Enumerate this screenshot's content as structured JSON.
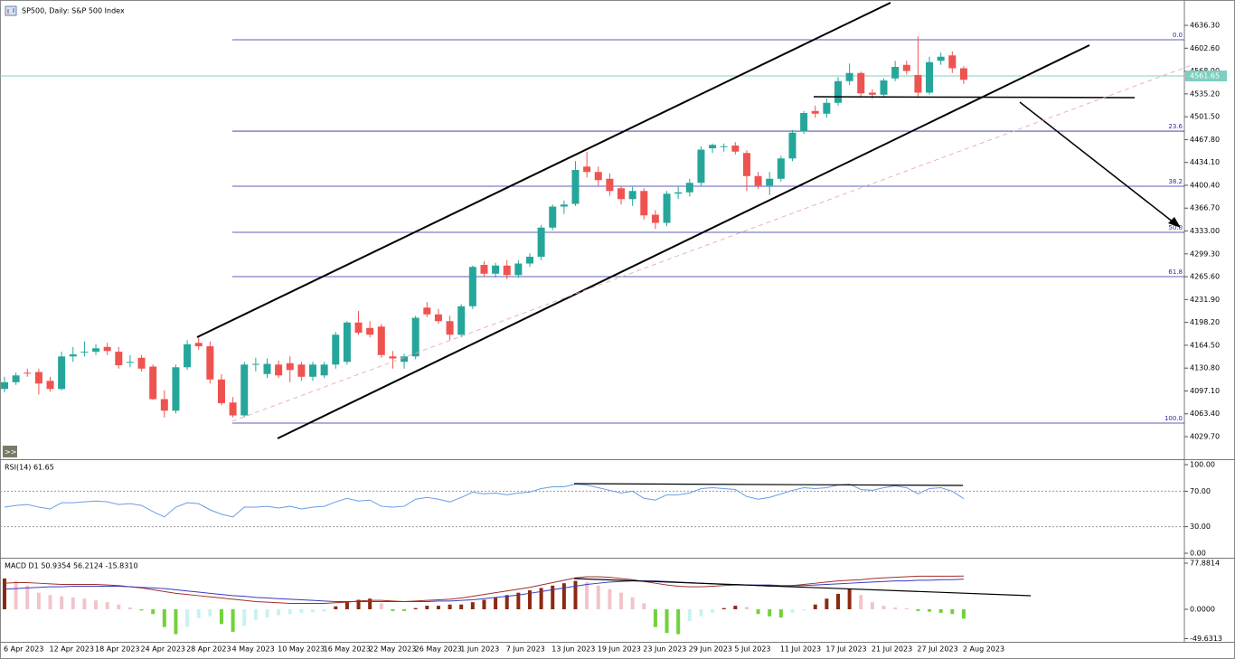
{
  "toolbar": {
    "expand": ">>"
  },
  "chart_data": [
    {
      "type": "candlestick",
      "title": "SP500, Daily:  S&P 500 Index",
      "categories": [
        "6 Apr 2023",
        null,
        null,
        null,
        "12 Apr 2023",
        null,
        null,
        null,
        "18 Apr 2023",
        null,
        null,
        null,
        "24 Apr 2023",
        null,
        null,
        null,
        "28 Apr 2023",
        null,
        null,
        null,
        "4 May 2023",
        null,
        null,
        null,
        "10 May 2023",
        null,
        null,
        null,
        "16 May 2023",
        null,
        null,
        null,
        "22 May 2023",
        null,
        null,
        null,
        "26 May 2023",
        null,
        null,
        null,
        "1 Jun 2023",
        null,
        null,
        null,
        "7 Jun 2023",
        null,
        null,
        null,
        "13 Jun 2023",
        null,
        null,
        null,
        "19 Jun 2023",
        null,
        null,
        null,
        "23 Jun 2023",
        null,
        null,
        null,
        "29 Jun 2023",
        null,
        null,
        null,
        "5 Jul 2023",
        null,
        null,
        null,
        "11 Jul 2023",
        null,
        null,
        null,
        "17 Jul 2023",
        null,
        null,
        null,
        "21 Jul 2023",
        null,
        null,
        null,
        "27 Jul 2023",
        null,
        null,
        null,
        "2 Aug 2023"
      ],
      "open": [
        4100,
        4110,
        4124,
        4125,
        4112,
        4100,
        4148,
        4154,
        4155,
        4162,
        4155,
        4140,
        4146,
        4133,
        4085,
        4068,
        4132,
        4168,
        4163,
        4114,
        4080,
        4061,
        4136,
        4122,
        4136,
        4138,
        4136,
        4118,
        4120,
        4136,
        4140,
        4198,
        4190,
        4192,
        4148,
        4140,
        4148,
        4220,
        4210,
        4200,
        4180,
        4222,
        4283,
        4270,
        4282,
        4268,
        4285,
        4295,
        4338,
        4369,
        4373,
        4428,
        4420,
        4410,
        4396,
        4380,
        4392,
        4357,
        4345,
        4388,
        4390,
        4404,
        4455,
        4458,
        4459,
        4448,
        4414,
        4400,
        4410,
        4440,
        4480,
        4510,
        4506,
        4522,
        4554,
        4566,
        4537,
        4534,
        4558,
        4578,
        4563,
        4537,
        4584,
        4592,
        4573
      ],
      "high": [
        4118,
        4124,
        4130,
        4130,
        4118,
        4155,
        4162,
        4170,
        4166,
        4168,
        4162,
        4150,
        4150,
        4136,
        4098,
        4136,
        4172,
        4176,
        4170,
        4122,
        4088,
        4140,
        4146,
        4145,
        4142,
        4148,
        4140,
        4140,
        4140,
        4184,
        4200,
        4215,
        4200,
        4196,
        4156,
        4152,
        4208,
        4228,
        4218,
        4208,
        4225,
        4282,
        4288,
        4286,
        4290,
        4290,
        4300,
        4342,
        4372,
        4378,
        4436,
        4450,
        4428,
        4418,
        4400,
        4398,
        4396,
        4364,
        4392,
        4398,
        4410,
        4458,
        4462,
        4462,
        4464,
        4452,
        4420,
        4420,
        4444,
        4482,
        4510,
        4518,
        4528,
        4560,
        4580,
        4568,
        4542,
        4558,
        4584,
        4584,
        4620,
        4590,
        4596,
        4598,
        4576
      ],
      "low": [
        4095,
        4106,
        4118,
        4092,
        4096,
        4098,
        4140,
        4148,
        4150,
        4150,
        4130,
        4132,
        4126,
        4084,
        4058,
        4064,
        4128,
        4158,
        4108,
        4076,
        4058,
        4058,
        4126,
        4116,
        4116,
        4110,
        4112,
        4112,
        4116,
        4130,
        4136,
        4180,
        4176,
        4146,
        4130,
        4130,
        4144,
        4206,
        4196,
        4172,
        4176,
        4218,
        4265,
        4264,
        4262,
        4264,
        4280,
        4290,
        4334,
        4358,
        4370,
        4412,
        4400,
        4385,
        4372,
        4370,
        4350,
        4336,
        4340,
        4380,
        4384,
        4400,
        4448,
        4450,
        4446,
        4392,
        4395,
        4386,
        4406,
        4436,
        4476,
        4500,
        4500,
        4518,
        4548,
        4530,
        4528,
        4530,
        4554,
        4564,
        4530,
        4534,
        4578,
        4566,
        4550
      ],
      "close": [
        4110,
        4120,
        4123,
        4108,
        4100,
        4148,
        4151,
        4155,
        4160,
        4156,
        4135,
        4140,
        4130,
        4085,
        4068,
        4132,
        4166,
        4163,
        4114,
        4079,
        4061,
        4136,
        4137,
        4137,
        4120,
        4128,
        4118,
        4136,
        4136,
        4180,
        4198,
        4183,
        4180,
        4150,
        4145,
        4148,
        4205,
        4210,
        4200,
        4180,
        4222,
        4280,
        4270,
        4282,
        4268,
        4285,
        4295,
        4338,
        4369,
        4372,
        4423,
        4420,
        4408,
        4392,
        4380,
        4392,
        4356,
        4345,
        4388,
        4390,
        4404,
        4453,
        4460,
        4458,
        4450,
        4414,
        4400,
        4410,
        4440,
        4478,
        4507,
        4506,
        4522,
        4554,
        4566,
        4536,
        4534,
        4555,
        4575,
        4569,
        4537,
        4582,
        4590,
        4573,
        4556
      ],
      "up_color": "#26a69a",
      "down_color": "#ef5350",
      "ylim": [
        3996.4,
        4663
      ],
      "yticks": [
        {
          "value": 4636.3,
          "label": "4636.30"
        },
        {
          "value": 4602.6,
          "label": "4602.60"
        },
        {
          "value": 4568.9,
          "label": "4568.90"
        },
        {
          "value": 4535.2,
          "label": "4535.20"
        },
        {
          "value": 4501.5,
          "label": "4501.50"
        },
        {
          "value": 4467.8,
          "label": "4467.80"
        },
        {
          "value": 4434.1,
          "label": "4434.10"
        },
        {
          "value": 4400.4,
          "label": "4400.40"
        },
        {
          "value": 4366.7,
          "label": "4366.70"
        },
        {
          "value": 4333,
          "label": "4333.00"
        },
        {
          "value": 4299.3,
          "label": "4299.30"
        },
        {
          "value": 4265.6,
          "label": "4265.60"
        },
        {
          "value": 4231.9,
          "label": "4231.90"
        },
        {
          "value": 4198.2,
          "label": "4198.20"
        },
        {
          "value": 4164.5,
          "label": "4164.50"
        },
        {
          "value": 4130.8,
          "label": "4130.80"
        },
        {
          "value": 4097.1,
          "label": "4097.10"
        },
        {
          "value": 4063.4,
          "label": "4063.40"
        },
        {
          "value": 4029.7,
          "label": "4029.70"
        }
      ],
      "last_price": 4561.65,
      "last_price_color": "#7ecfc0",
      "fib_levels": [
        {
          "value": 4615,
          "label": "0.0"
        },
        {
          "value": 4480.3,
          "label": "23.6"
        },
        {
          "value": 4399,
          "label": "38.2"
        },
        {
          "value": 4331,
          "label": "50.0"
        },
        {
          "value": 4265.7,
          "label": "61.8"
        },
        {
          "value": 4049.7,
          "label": "100.0"
        }
      ],
      "fib_color": "#2a2aa0"
    },
    {
      "type": "line",
      "title": "RSI(14) 61.65",
      "color": "#6a9de0",
      "values": [
        52,
        54,
        55,
        52,
        50,
        57,
        57,
        58,
        59,
        58,
        55,
        56,
        54,
        47,
        41,
        52,
        57,
        56,
        49,
        44,
        41,
        52,
        52,
        53,
        51,
        53,
        50,
        52,
        53,
        58,
        62,
        59,
        60,
        53,
        52,
        53,
        61,
        63,
        61,
        58,
        63,
        69,
        67,
        68,
        66,
        68,
        69,
        73,
        75,
        75,
        78,
        77,
        74,
        71,
        68,
        70,
        62,
        60,
        66,
        66,
        68,
        73,
        74,
        73,
        72,
        64,
        61,
        63,
        67,
        71,
        74,
        73,
        74,
        77,
        78,
        72,
        71,
        74,
        76,
        74,
        67,
        73,
        74,
        70,
        61.65
      ],
      "ylim": [
        -5.1,
        104.1
      ],
      "yticks": [
        {
          "value": 100,
          "label": "100.00"
        },
        {
          "value": 70,
          "label": "70.00"
        },
        {
          "value": 30,
          "label": "30.00"
        },
        {
          "value": 0,
          "label": "0.00"
        }
      ],
      "levels": [
        70,
        30
      ]
    },
    {
      "type": "macd",
      "title": "MACD D1 50.9354 56.2124 -15.8310",
      "histogram": [
        52,
        48,
        40,
        28,
        24,
        22,
        20,
        18,
        15,
        12,
        8,
        3,
        -2,
        -8,
        -30,
        -42,
        -30,
        -15,
        -12,
        -25,
        -38,
        -28,
        -18,
        -14,
        -10,
        -8,
        -6,
        -5,
        -4,
        5,
        12,
        16,
        18,
        10,
        -3,
        -3,
        2,
        6,
        6,
        8,
        8,
        12,
        16,
        20,
        24,
        28,
        32,
        36,
        40,
        44,
        48,
        46,
        40,
        34,
        28,
        20,
        10,
        -30,
        -40,
        -42,
        -20,
        -12,
        -6,
        2,
        6,
        4,
        -8,
        -12,
        -14,
        -6,
        -2,
        8,
        18,
        26,
        34,
        24,
        12,
        6,
        3,
        2,
        -3,
        -4,
        -6,
        -8,
        -15.831
      ],
      "hist_colors": {
        "pos_up": "#8b2a10",
        "pos_down": "#f2c4ca",
        "neg_down": "#6fd33a",
        "neg_up": "#c8f2f2"
      },
      "series": [
        {
          "color": "#a0302a",
          "values": [
            44,
            45,
            45,
            44,
            43,
            42,
            42,
            42,
            42,
            41,
            40,
            38,
            36,
            33,
            30,
            27,
            25,
            23,
            21,
            19,
            17,
            15,
            13,
            12,
            11,
            10,
            10,
            10,
            10,
            11,
            12,
            14,
            15,
            15,
            14,
            13,
            14,
            15,
            16,
            17,
            19,
            22,
            25,
            28,
            31,
            34,
            37,
            41,
            45,
            49,
            53,
            55,
            55,
            54,
            52,
            50,
            47,
            44,
            41,
            39,
            38,
            38,
            39,
            40,
            41,
            41,
            40,
            39,
            39,
            40,
            42,
            44,
            46,
            48,
            49,
            50,
            52,
            53,
            54,
            55,
            56,
            56,
            56,
            56,
            56.2124
          ]
        },
        {
          "color": "#3a3ac0",
          "values": [
            34,
            35,
            36,
            37,
            38,
            38,
            39,
            39,
            39,
            39,
            39,
            38,
            37,
            36,
            35,
            33,
            31,
            29,
            27,
            25,
            23,
            22,
            20,
            19,
            18,
            17,
            16,
            15,
            14,
            13,
            13,
            13,
            13,
            13,
            13,
            13,
            13,
            13,
            14,
            14,
            15,
            16,
            18,
            20,
            22,
            24,
            27,
            30,
            33,
            36,
            39,
            42,
            44,
            46,
            47,
            48,
            48,
            48,
            47,
            46,
            45,
            44,
            43,
            42,
            42,
            41,
            41,
            41,
            40,
            40,
            40,
            41,
            42,
            43,
            44,
            45,
            46,
            47,
            48,
            48,
            49,
            49,
            50,
            50,
            50.9354
          ]
        }
      ],
      "ylim": [
        -55,
        84
      ],
      "yticks": [
        {
          "value": 77.8814,
          "label": "77.8814"
        },
        {
          "value": 0,
          "label": "0.0000"
        },
        {
          "value": -49.6313,
          "label": "-49.6313"
        }
      ]
    }
  ]
}
